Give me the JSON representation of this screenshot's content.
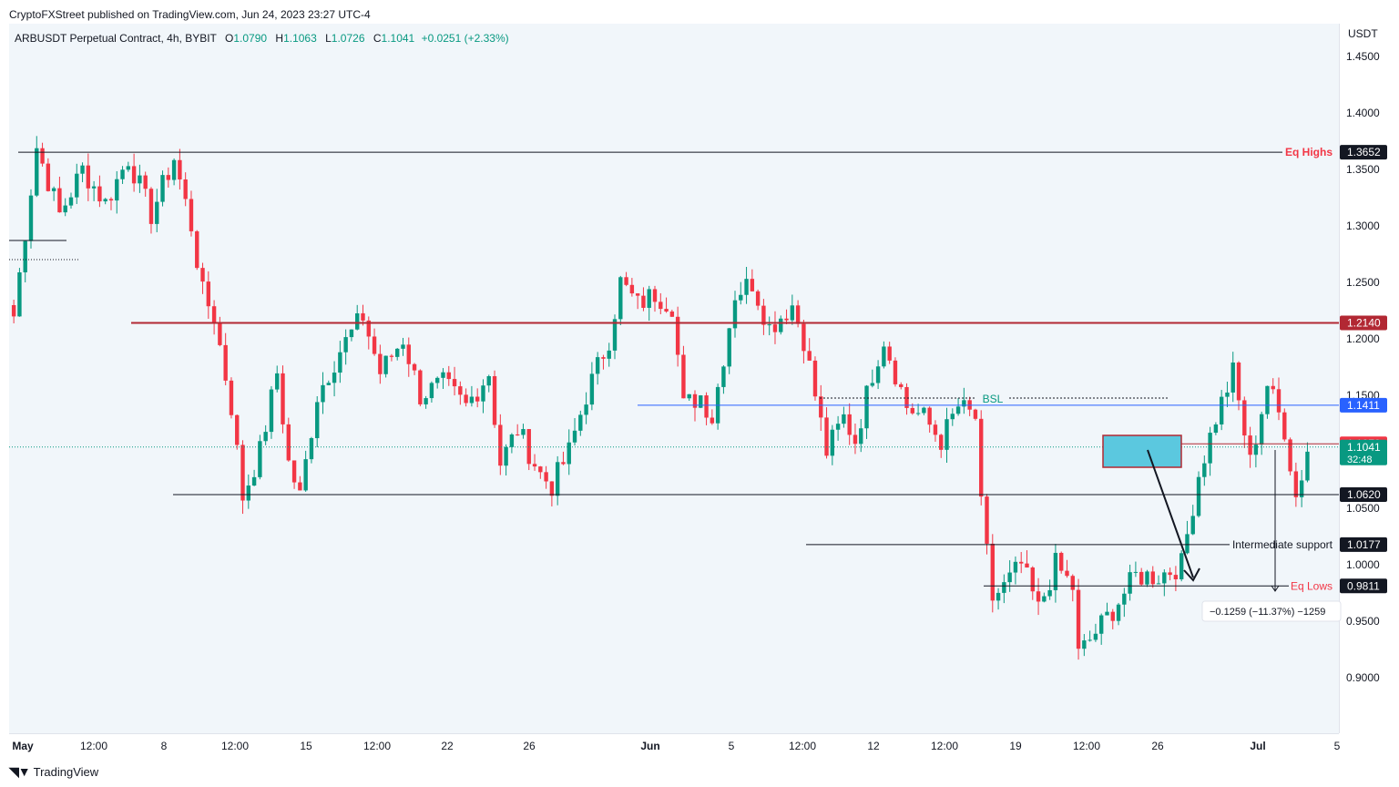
{
  "header": {
    "published": "CryptoFXStreet published on TradingView.com, Jun 24, 2023 23:27 UTC-4"
  },
  "footer": {
    "logo_text": "TradingView"
  },
  "legend": {
    "symbol": "ARBUSDT Perpetual Contract, 4h, BYBIT",
    "o_label": "O",
    "o": "1.0790",
    "h_label": "H",
    "h": "1.1063",
    "l_label": "L",
    "l": "1.0726",
    "c_label": "C",
    "c": "1.1041",
    "change": "+0.0251 (+2.33%)"
  },
  "colors": {
    "up": "#089981",
    "down": "#f23645",
    "resistance": "#b22833",
    "bsl_line": "#2962ff",
    "zone": "#5bc8df",
    "zone_border": "#b22833",
    "eq_label": "#f23645"
  },
  "chart_data": {
    "type": "candlestick",
    "unit": "USDT",
    "ylim": [
      0.86,
      1.49
    ],
    "y_ticks": [
      "1.4500",
      "1.4000",
      "1.3500",
      "1.3000",
      "1.2500",
      "1.2000",
      "1.1500",
      "1.0500",
      "1.0000",
      "0.9500",
      "0.9000"
    ],
    "x_ticks": [
      "May",
      "12:00",
      "8",
      "12:00",
      "15",
      "12:00",
      "22",
      "26",
      "Jun",
      "5",
      "12:00",
      "12",
      "12:00",
      "19",
      "12:00",
      "26",
      "Jul",
      "5"
    ],
    "levels": [
      {
        "label": "Eq Highs",
        "value": "1.3652"
      },
      {
        "label": "",
        "value": "1.2140"
      },
      {
        "label": "",
        "value": "1.1411"
      },
      {
        "label": "",
        "value": "1.1070"
      },
      {
        "label": "",
        "value": "1.0620"
      },
      {
        "label": "Intermediate support",
        "value": "1.0177"
      },
      {
        "label": "Eq Lows",
        "value": "0.9811"
      }
    ],
    "current_price": "1.1041",
    "countdown": "32:48",
    "bsl_label": "BSL",
    "measure_label": "−0.1259 (−11.37%) −1259",
    "path": [
      [
        0,
        1.22
      ],
      [
        4,
        1.37
      ],
      [
        8,
        1.31
      ],
      [
        12,
        1.35
      ],
      [
        16,
        1.32
      ],
      [
        20,
        1.36
      ],
      [
        24,
        1.31
      ],
      [
        28,
        1.36
      ],
      [
        31,
        1.3
      ],
      [
        33,
        1.24
      ],
      [
        35,
        1.22
      ],
      [
        38,
        1.14
      ],
      [
        40,
        1.06
      ],
      [
        43,
        1.1
      ],
      [
        46,
        1.17
      ],
      [
        48,
        1.09
      ],
      [
        50,
        1.06
      ],
      [
        53,
        1.15
      ],
      [
        57,
        1.19
      ],
      [
        61,
        1.22
      ],
      [
        64,
        1.17
      ],
      [
        68,
        1.2
      ],
      [
        71,
        1.15
      ],
      [
        75,
        1.16
      ],
      [
        79,
        1.14
      ],
      [
        83,
        1.17
      ],
      [
        85,
        1.09
      ],
      [
        88,
        1.12
      ],
      [
        92,
        1.08
      ],
      [
        94,
        1.07
      ],
      [
        97,
        1.1
      ],
      [
        100,
        1.15
      ],
      [
        104,
        1.2
      ],
      [
        106,
        1.25
      ],
      [
        109,
        1.23
      ],
      [
        112,
        1.24
      ],
      [
        115,
        1.23
      ],
      [
        117,
        1.14
      ],
      [
        120,
        1.15
      ],
      [
        122,
        1.13
      ],
      [
        126,
        1.24
      ],
      [
        129,
        1.25
      ],
      [
        132,
        1.21
      ],
      [
        136,
        1.23
      ],
      [
        138,
        1.2
      ],
      [
        140,
        1.15
      ],
      [
        142,
        1.1
      ],
      [
        145,
        1.13
      ],
      [
        147,
        1.11
      ],
      [
        150,
        1.17
      ],
      [
        152,
        1.2
      ],
      [
        156,
        1.14
      ],
      [
        159,
        1.13
      ],
      [
        162,
        1.11
      ],
      [
        165,
        1.14
      ],
      [
        168,
        1.13
      ],
      [
        169,
        1.05
      ],
      [
        171,
        0.97
      ],
      [
        173,
        0.98
      ],
      [
        176,
        1.0
      ],
      [
        179,
        0.96
      ],
      [
        182,
        1.0
      ],
      [
        185,
        0.98
      ],
      [
        186,
        0.92
      ],
      [
        189,
        0.94
      ],
      [
        192,
        0.96
      ],
      [
        196,
        0.99
      ],
      [
        200,
        0.99
      ],
      [
        204,
        1.0
      ],
      [
        207,
        1.08
      ],
      [
        210,
        1.13
      ],
      [
        213,
        1.17
      ],
      [
        216,
        1.09
      ],
      [
        219,
        1.16
      ],
      [
        222,
        1.12
      ],
      [
        224,
        1.06
      ],
      [
        226,
        1.1
      ]
    ]
  }
}
